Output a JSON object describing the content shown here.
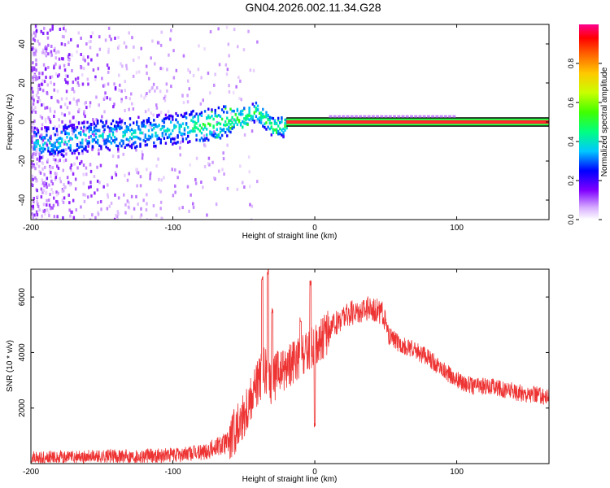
{
  "title": "GN04.2026.002.11.34.G28",
  "chart_data": [
    {
      "type": "heatmap",
      "xlabel": "Height of straight line (km)",
      "ylabel": "Frequency (Hz)",
      "xlim": [
        -200,
        165
      ],
      "ylim": [
        -50,
        50
      ],
      "xticks": [
        -200,
        -100,
        0,
        100
      ],
      "yticks": [
        -40,
        -20,
        0,
        20,
        40
      ],
      "colorbar": {
        "label": "Normalized spectral amplitude",
        "range": [
          0,
          1
        ],
        "ticks": [
          "0.0",
          "0.2",
          "0.4",
          "0.6",
          "0.8"
        ],
        "colormap": "rainbow"
      },
      "ridge": [
        {
          "x": -190,
          "y": -10
        },
        {
          "x": -160,
          "y": -7
        },
        {
          "x": -130,
          "y": -5
        },
        {
          "x": -100,
          "y": -3
        },
        {
          "x": -70,
          "y": 0
        },
        {
          "x": -50,
          "y": 3
        },
        {
          "x": -42,
          "y": 6
        },
        {
          "x": -35,
          "y": 2
        },
        {
          "x": -30,
          "y": -2
        },
        {
          "x": -20,
          "y": -2
        },
        {
          "x": -15,
          "y": 0
        },
        {
          "x": 0,
          "y": 1
        },
        {
          "x": 165,
          "y": 0
        }
      ],
      "carrier_start_x": -20,
      "carrier_y": 0
    },
    {
      "type": "line",
      "xlabel": "Height of straight line (km)",
      "ylabel": "SNR (10 * v/v)",
      "xlim": [
        -200,
        165
      ],
      "ylim": [
        0,
        7000
      ],
      "xticks": [
        -200,
        -100,
        0,
        100
      ],
      "yticks": [
        2000,
        4000,
        6000
      ],
      "color": "#ee3333",
      "envelope": [
        {
          "x": -200,
          "y": 200
        },
        {
          "x": -150,
          "y": 250
        },
        {
          "x": -100,
          "y": 300
        },
        {
          "x": -80,
          "y": 400
        },
        {
          "x": -60,
          "y": 800
        },
        {
          "x": -50,
          "y": 1800
        },
        {
          "x": -42,
          "y": 2800
        },
        {
          "x": -36,
          "y": 3300
        },
        {
          "x": -30,
          "y": 3000
        },
        {
          "x": -20,
          "y": 3500
        },
        {
          "x": -10,
          "y": 3800
        },
        {
          "x": 0,
          "y": 4200
        },
        {
          "x": 10,
          "y": 4800
        },
        {
          "x": 20,
          "y": 5300
        },
        {
          "x": 30,
          "y": 5500
        },
        {
          "x": 40,
          "y": 5600
        },
        {
          "x": 48,
          "y": 5400
        },
        {
          "x": 52,
          "y": 4600
        },
        {
          "x": 60,
          "y": 4300
        },
        {
          "x": 70,
          "y": 4100
        },
        {
          "x": 80,
          "y": 3800
        },
        {
          "x": 90,
          "y": 3400
        },
        {
          "x": 100,
          "y": 3000
        },
        {
          "x": 110,
          "y": 2800
        },
        {
          "x": 120,
          "y": 2800
        },
        {
          "x": 130,
          "y": 2700
        },
        {
          "x": 140,
          "y": 2600
        },
        {
          "x": 150,
          "y": 2500
        },
        {
          "x": 165,
          "y": 2400
        }
      ],
      "spikes": [
        {
          "x": -37,
          "y": 6800
        },
        {
          "x": -33,
          "y": 7000
        },
        {
          "x": -30,
          "y": 5600
        },
        {
          "x": -3,
          "y": 6600
        },
        {
          "x": -10,
          "y": 5300
        },
        {
          "x": 0,
          "y": 1500
        }
      ]
    }
  ]
}
